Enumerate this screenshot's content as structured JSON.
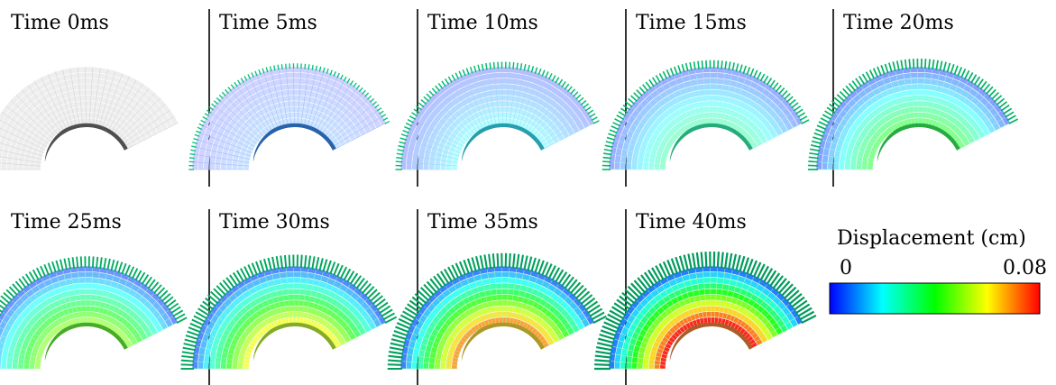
{
  "panels": [
    {
      "label": "Time 0ms",
      "time_ms": 0
    },
    {
      "label": "Time 5ms",
      "time_ms": 5
    },
    {
      "label": "Time 10ms",
      "time_ms": 10
    },
    {
      "label": "Time 15ms",
      "time_ms": 15
    },
    {
      "label": "Time 20ms",
      "time_ms": 20
    },
    {
      "label": "Time 25ms",
      "time_ms": 25
    },
    {
      "label": "Time 30ms",
      "time_ms": 30
    },
    {
      "label": "Time 35ms",
      "time_ms": 35
    },
    {
      "label": "Time 40ms",
      "time_ms": 40
    }
  ],
  "legend": {
    "title": "Displacement (cm)",
    "min_label": "0",
    "max_label": "0.08",
    "min_value": 0,
    "max_value": 0.08,
    "colormap": [
      "#0000ff",
      "#00ffff",
      "#00ff00",
      "#ffff00",
      "#ff0000"
    ]
  }
}
